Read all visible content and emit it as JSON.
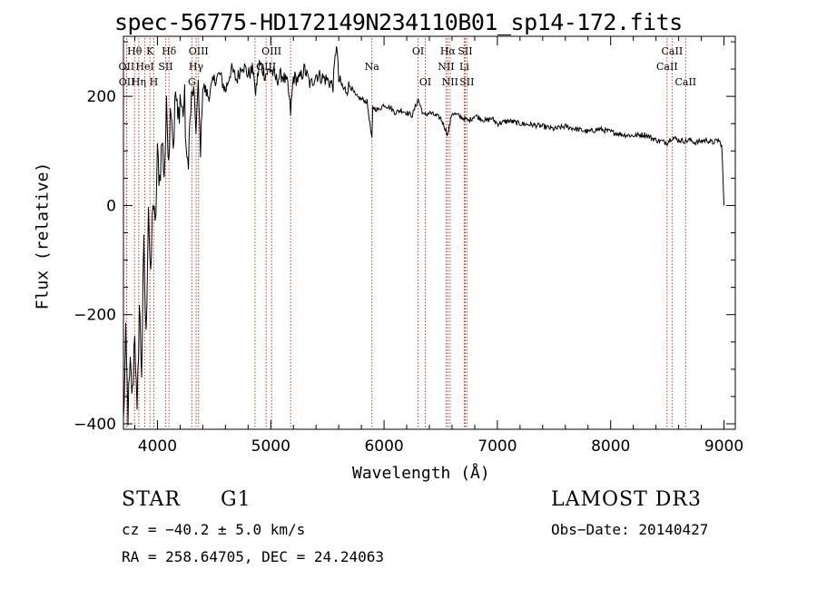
{
  "chart_data": {
    "type": "line",
    "title": "spec-56775-HD172149N234110B01_sp14-172.fits",
    "xlabel": "Wavelength (Å)",
    "ylabel": "Flux (relative)",
    "xlim": [
      3700,
      9100
    ],
    "ylim": [
      -410,
      310
    ],
    "xticks": [
      4000,
      5000,
      6000,
      7000,
      8000,
      9000
    ],
    "yticks": [
      -400,
      -200,
      0,
      200
    ],
    "series": [
      {
        "name": "spectrum",
        "x": [
          3700,
          3720,
          3740,
          3760,
          3780,
          3800,
          3820,
          3840,
          3860,
          3880,
          3900,
          3920,
          3940,
          3960,
          3980,
          4000,
          4020,
          4040,
          4060,
          4080,
          4100,
          4120,
          4140,
          4160,
          4180,
          4200,
          4220,
          4240,
          4260,
          4280,
          4300,
          4320,
          4340,
          4360,
          4380,
          4400,
          4450,
          4500,
          4550,
          4600,
          4650,
          4700,
          4750,
          4800,
          4850,
          4861,
          4900,
          4950,
          5000,
          5050,
          5100,
          5150,
          5175,
          5200,
          5250,
          5300,
          5350,
          5400,
          5450,
          5500,
          5550,
          5580,
          5600,
          5650,
          5700,
          5750,
          5800,
          5850,
          5893,
          5900,
          5950,
          6000,
          6050,
          6100,
          6150,
          6200,
          6250,
          6300,
          6350,
          6400,
          6450,
          6500,
          6563,
          6600,
          6650,
          6700,
          6750,
          6800,
          6850,
          6900,
          6950,
          7000,
          7100,
          7200,
          7300,
          7400,
          7500,
          7600,
          7700,
          7800,
          7900,
          8000,
          8100,
          8200,
          8300,
          8400,
          8498,
          8542,
          8600,
          8662,
          8700,
          8750,
          8800,
          8850,
          8900,
          8950,
          8980,
          9000
        ],
        "values": [
          -400,
          -250,
          -380,
          -300,
          -350,
          -220,
          -400,
          -180,
          -300,
          -80,
          -250,
          10,
          -150,
          20,
          -50,
          90,
          50,
          120,
          60,
          170,
          100,
          200,
          110,
          210,
          150,
          200,
          170,
          190,
          60,
          120,
          200,
          210,
          140,
          220,
          100,
          220,
          200,
          230,
          240,
          210,
          250,
          230,
          260,
          240,
          250,
          200,
          260,
          240,
          250,
          230,
          240,
          220,
          170,
          235,
          230,
          250,
          220,
          240,
          235,
          230,
          220,
          300,
          230,
          210,
          220,
          200,
          195,
          190,
          120,
          180,
          175,
          185,
          180,
          170,
          175,
          170,
          165,
          195,
          165,
          170,
          165,
          160,
          130,
          170,
          165,
          160,
          155,
          165,
          160,
          155,
          160,
          150,
          155,
          150,
          148,
          145,
          140,
          145,
          140,
          135,
          140,
          135,
          130,
          128,
          130,
          120,
          115,
          125,
          120,
          118,
          120,
          115,
          118,
          120,
          115,
          120,
          110,
          0
        ]
      }
    ],
    "lines": [
      {
        "name": "OII-a",
        "x": 3727,
        "label": "OII",
        "row": 2
      },
      {
        "name": "OII-b",
        "x": 3729,
        "label": "OII",
        "row": 3
      },
      {
        "name": "Hθ",
        "x": 3798,
        "label": "Hθ",
        "row": 1
      },
      {
        "name": "Hη",
        "x": 3835,
        "label": "Hη",
        "row": 3
      },
      {
        "name": "HeI",
        "x": 3889,
        "label": "HeI",
        "row": 2
      },
      {
        "name": "K",
        "x": 3934,
        "label": "K",
        "row": 1
      },
      {
        "name": "H",
        "x": 3968,
        "label": "H",
        "row": 3
      },
      {
        "name": "SII-blue",
        "x": 4072,
        "label": "SII",
        "row": 2
      },
      {
        "name": "Hδ",
        "x": 4102,
        "label": "Hδ",
        "row": 1
      },
      {
        "name": "G",
        "x": 4304,
        "label": "G",
        "row": 3
      },
      {
        "name": "Hγ",
        "x": 4341,
        "label": "Hγ",
        "row": 2
      },
      {
        "name": "OIII-4363",
        "x": 4363,
        "label": "OIII",
        "row": 1
      },
      {
        "name": "OIII-4959",
        "x": 4959,
        "label": "OIII",
        "row": 2
      },
      {
        "name": "OIII-5007",
        "x": 5007,
        "label": "OIII",
        "row": 1
      },
      {
        "name": "Mg",
        "x": 5175,
        "label": "",
        "row": 0
      },
      {
        "name": "Hβ",
        "x": 4861,
        "label": "",
        "row": 0
      },
      {
        "name": "Na",
        "x": 5893,
        "label": "Na",
        "row": 2
      },
      {
        "name": "OI-6300",
        "x": 6300,
        "label": "OI",
        "row": 1
      },
      {
        "name": "OI-6364",
        "x": 6364,
        "label": "OI",
        "row": 3
      },
      {
        "name": "NII-6548",
        "x": 6548,
        "label": "NII",
        "row": 2
      },
      {
        "name": "Hα",
        "x": 6563,
        "label": "Hα",
        "row": 1
      },
      {
        "name": "NII-6583",
        "x": 6583,
        "label": "NII",
        "row": 3
      },
      {
        "name": "Li",
        "x": 6708,
        "label": "Li",
        "row": 2
      },
      {
        "name": "SII-6716",
        "x": 6716,
        "label": "SII",
        "row": 1
      },
      {
        "name": "SII-6731",
        "x": 6731,
        "label": "SII",
        "row": 3
      },
      {
        "name": "CaII-8498",
        "x": 8498,
        "label": "CaII",
        "row": 2
      },
      {
        "name": "CaII-8542",
        "x": 8542,
        "label": "CaII",
        "row": 1
      },
      {
        "name": "CaII-8662",
        "x": 8662,
        "label": "CaII",
        "row": 3
      }
    ]
  },
  "info": {
    "object_class": "STAR",
    "subclass": "G1",
    "survey": "LAMOST DR3",
    "cz": "cz = −40.2 ± 5.0 km/s",
    "obs_date": "Obs−Date: 20140427",
    "coords": "RA = 258.64705, DEC =  24.24063"
  }
}
